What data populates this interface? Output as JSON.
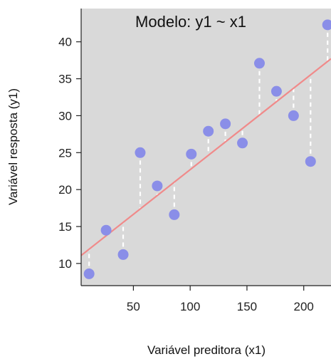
{
  "chart_data": {
    "type": "scatter",
    "title": "Modelo: y1 ~ x1",
    "xlabel": "Variável preditora (x1)",
    "ylabel": "Variável resposta (y1)",
    "xlim": [
      4,
      224
    ],
    "ylim": [
      7,
      44.5
    ],
    "xticks": [
      50,
      100,
      150,
      200
    ],
    "yticks": [
      10,
      15,
      20,
      25,
      30,
      35,
      40
    ],
    "points": [
      {
        "x": 11,
        "y": 8.6
      },
      {
        "x": 26,
        "y": 14.5
      },
      {
        "x": 41,
        "y": 11.2
      },
      {
        "x": 56,
        "y": 25.0
      },
      {
        "x": 71,
        "y": 20.5
      },
      {
        "x": 86,
        "y": 16.6
      },
      {
        "x": 101,
        "y": 24.8
      },
      {
        "x": 116,
        "y": 27.9
      },
      {
        "x": 131,
        "y": 28.9
      },
      {
        "x": 146,
        "y": 26.3
      },
      {
        "x": 161,
        "y": 37.1
      },
      {
        "x": 176,
        "y": 33.3
      },
      {
        "x": 191,
        "y": 30.0
      },
      {
        "x": 206,
        "y": 23.8
      },
      {
        "x": 221,
        "y": 42.3
      }
    ],
    "fit_line": {
      "intercept": 10.6,
      "slope": 0.121
    },
    "residual_lines": true,
    "grid": false,
    "colors": {
      "panel": "#d9d9d9",
      "point": "#8a8ee8",
      "fit": "#f08a8a",
      "residual": "#ffffff",
      "border": "#222222"
    }
  }
}
